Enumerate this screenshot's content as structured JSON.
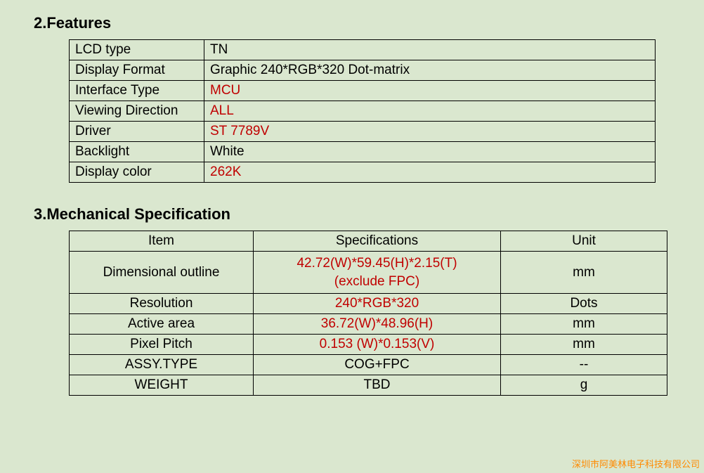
{
  "colors": {
    "background": "#dae7cf",
    "text": "#000000",
    "highlight": "#c00000",
    "border": "#000000",
    "footer": "#ff8a00"
  },
  "typography": {
    "heading_fontsize_pt": 17,
    "cell_fontsize_pt": 14,
    "font_family": "Arial"
  },
  "section_features": {
    "heading": "2.Features",
    "rows": [
      {
        "label": "LCD type",
        "value": "TN",
        "highlight": false
      },
      {
        "label": "Display Format",
        "value": "Graphic 240*RGB*320 Dot-matrix",
        "highlight": false
      },
      {
        "label": "Interface Type",
        "value": "MCU",
        "highlight": true
      },
      {
        "label": "Viewing Direction",
        "value": "ALL",
        "highlight": true
      },
      {
        "label": "Driver",
        "value": "ST 7789V",
        "highlight": true
      },
      {
        "label": "Backlight",
        "value": "White",
        "highlight": false
      },
      {
        "label": "Display color",
        "value": "262K",
        "highlight": true
      }
    ]
  },
  "section_mechanical": {
    "heading": "3.Mechanical Specification",
    "header": {
      "item": "Item",
      "spec": "Specifications",
      "unit": "Unit"
    },
    "rows": [
      {
        "item": "Dimensional outline",
        "spec": "42.72(W)*59.45(H)*2.15(T)\n(exclude FPC)",
        "unit": "mm",
        "highlight": true
      },
      {
        "item": "Resolution",
        "spec": "240*RGB*320",
        "unit": "Dots",
        "highlight": true
      },
      {
        "item": "Active area",
        "spec": "36.72(W)*48.96(H)",
        "unit": "mm",
        "highlight": true
      },
      {
        "item": "Pixel Pitch",
        "spec": "0.153 (W)*0.153(V)",
        "unit": "mm",
        "highlight": true
      },
      {
        "item": "ASSY.TYPE",
        "spec": "COG+FPC",
        "unit": "--",
        "highlight": false
      },
      {
        "item": "WEIGHT",
        "spec": "TBD",
        "unit": "g",
        "highlight": false
      }
    ]
  },
  "footer": "深圳市阿美林电子科技有限公司"
}
